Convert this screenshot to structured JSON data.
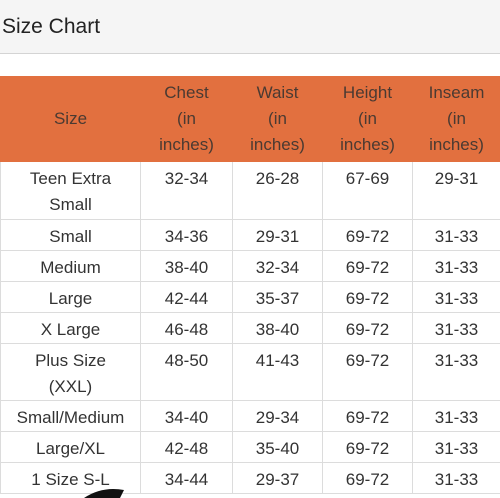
{
  "header": {
    "title": "Size Chart"
  },
  "table": {
    "columns": [
      "Size",
      "Chest\n(in\ninches)",
      "Waist\n(in\ninches)",
      "Height\n(in\ninches)",
      "Inseam\n(in\ninches)"
    ],
    "rows": [
      [
        "Teen Extra Small",
        "32-34",
        "26-28",
        "67-69",
        "29-31"
      ],
      [
        "Small",
        "34-36",
        "29-31",
        "69-72",
        "31-33"
      ],
      [
        "Medium",
        "38-40",
        "32-34",
        "69-72",
        "31-33"
      ],
      [
        "Large",
        "42-44",
        "35-37",
        "69-72",
        "31-33"
      ],
      [
        "X Large",
        "46-48",
        "38-40",
        "69-72",
        "31-33"
      ],
      [
        "Plus Size (XXL)",
        "48-50",
        "41-43",
        "69-72",
        "31-33"
      ],
      [
        "Small/Medium",
        "34-40",
        "29-34",
        "69-72",
        "31-33"
      ],
      [
        "Large/XL",
        "42-48",
        "35-40",
        "69-72",
        "31-33"
      ],
      [
        "1 Size S-L",
        "34-44",
        "29-37",
        "69-72",
        "31-33"
      ]
    ]
  }
}
